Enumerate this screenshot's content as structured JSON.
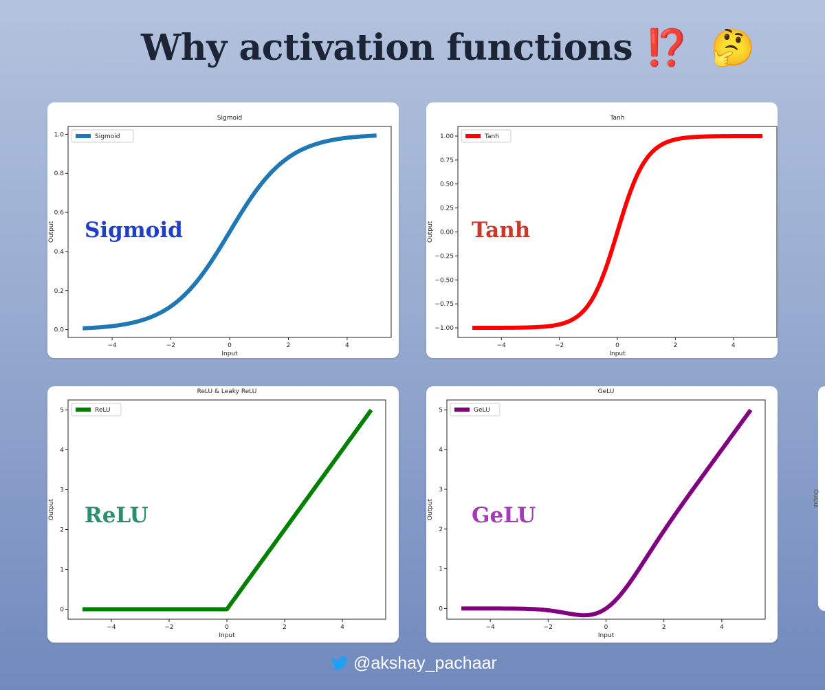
{
  "header": {
    "title": "Why activation functions",
    "emoji_marks": "⁉️",
    "emoji_face": "🤔"
  },
  "footer": {
    "handle": "@akshay_pachaar",
    "icon": "twitter-bird-icon"
  },
  "chart_data": [
    {
      "id": "sigmoid",
      "type": "line",
      "title": "Sigmoid",
      "xlabel": "Input",
      "ylabel": "Output",
      "overlay_label": "Sigmoid",
      "overlay_color": "#1f3fc4",
      "series": [
        {
          "name": "Sigmoid",
          "color": "#1f77b4",
          "function": "sigmoid"
        }
      ],
      "x": [
        -5,
        -4,
        -3,
        -2,
        -1,
        0,
        1,
        2,
        3,
        4,
        5
      ],
      "values": [
        0.007,
        0.018,
        0.047,
        0.119,
        0.269,
        0.5,
        0.731,
        0.881,
        0.953,
        0.982,
        0.993
      ],
      "xlim": [
        -5.5,
        5.5
      ],
      "ylim": [
        -0.04,
        1.04
      ],
      "xticks": [
        -4,
        -2,
        0,
        2,
        4
      ],
      "xtick_labels": [
        "−4",
        "−2",
        "0",
        "2",
        "4"
      ],
      "yticks": [
        0,
        0.2,
        0.4,
        0.6,
        0.8,
        1.0
      ],
      "ytick_labels": [
        "0.0",
        "0.2",
        "0.4",
        "0.6",
        "0.8",
        "1.0"
      ],
      "legend": "top-left",
      "grid": false
    },
    {
      "id": "tanh",
      "type": "line",
      "title": "Tanh",
      "xlabel": "Input",
      "ylabel": "Output",
      "overlay_label": "Tanh",
      "overlay_color": "#c9392b",
      "series": [
        {
          "name": "Tanh",
          "color": "#ff0000",
          "function": "tanh"
        }
      ],
      "x": [
        -5,
        -4,
        -3,
        -2,
        -1,
        0,
        1,
        2,
        3,
        4,
        5
      ],
      "values": [
        -1.0,
        -0.999,
        -0.995,
        -0.964,
        -0.762,
        0.0,
        0.762,
        0.964,
        0.995,
        0.999,
        1.0
      ],
      "xlim": [
        -5.5,
        5.5
      ],
      "ylim": [
        -1.1,
        1.1
      ],
      "xticks": [
        -4,
        -2,
        0,
        2,
        4
      ],
      "xtick_labels": [
        "−4",
        "−2",
        "0",
        "2",
        "4"
      ],
      "yticks": [
        -1.0,
        -0.75,
        -0.5,
        -0.25,
        0.0,
        0.25,
        0.5,
        0.75,
        1.0
      ],
      "ytick_labels": [
        "−1.00",
        "−0.75",
        "−0.50",
        "−0.25",
        "0.00",
        "0.25",
        "0.50",
        "0.75",
        "1.00"
      ],
      "legend": "top-left",
      "grid": false
    },
    {
      "id": "relu",
      "type": "line",
      "title": "ReLU & Leaky ReLU",
      "xlabel": "Input",
      "ylabel": "Output",
      "overlay_label": "ReLU",
      "overlay_color": "#2a8f6e",
      "series": [
        {
          "name": "ReLU",
          "color": "#008000",
          "function": "relu"
        }
      ],
      "x": [
        -5,
        -4,
        -3,
        -2,
        -1,
        0,
        1,
        2,
        3,
        4,
        5
      ],
      "values": [
        0,
        0,
        0,
        0,
        0,
        0,
        1,
        2,
        3,
        4,
        5
      ],
      "xlim": [
        -5.5,
        5.5
      ],
      "ylim": [
        -0.25,
        5.25
      ],
      "xticks": [
        -4,
        -2,
        0,
        2,
        4
      ],
      "xtick_labels": [
        "−4",
        "−2",
        "0",
        "2",
        "4"
      ],
      "yticks": [
        0,
        1,
        2,
        3,
        4,
        5
      ],
      "ytick_labels": [
        "0",
        "1",
        "2",
        "3",
        "4",
        "5"
      ],
      "legend": "top-left",
      "grid": false
    },
    {
      "id": "gelu",
      "type": "line",
      "title": "GeLU",
      "xlabel": "Input",
      "ylabel": "Output",
      "overlay_label": "GeLU",
      "overlay_color": "#a43ab5",
      "series": [
        {
          "name": "GeLU",
          "color": "#800080",
          "function": "gelu"
        }
      ],
      "x": [
        -5,
        -4,
        -3,
        -2,
        -1,
        -0.75,
        0,
        1,
        2,
        3,
        4,
        5
      ],
      "values": [
        0.0,
        -0.0001,
        -0.004,
        -0.045,
        -0.159,
        -0.17,
        0.0,
        0.841,
        1.955,
        2.996,
        4.0,
        5.0
      ],
      "xlim": [
        -5.5,
        5.5
      ],
      "ylim": [
        -0.27,
        5.25
      ],
      "xticks": [
        -4,
        -2,
        0,
        2,
        4
      ],
      "xtick_labels": [
        "−4",
        "−2",
        "0",
        "2",
        "4"
      ],
      "yticks": [
        0,
        1,
        2,
        3,
        4,
        5
      ],
      "ytick_labels": [
        "0",
        "1",
        "2",
        "3",
        "4",
        "5"
      ],
      "legend": "top-left",
      "grid": false
    }
  ]
}
